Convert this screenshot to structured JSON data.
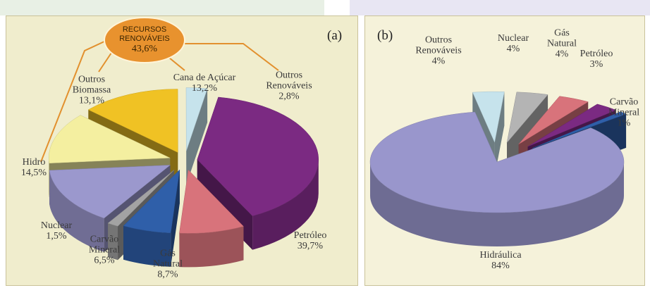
{
  "chart_data": [
    {
      "type": "pie",
      "title": "(a)",
      "annotation": {
        "text": "RECURSOS RENOVÁVEIS",
        "value": 43.6,
        "value_label": "43,6%"
      },
      "categories": [
        "Petróleo",
        "Gás Natural",
        "Carvão Mineral",
        "Nuclear",
        "Hidro",
        "Outros Biomassa",
        "Cana de Açúcar",
        "Outros Renováveis"
      ],
      "values": [
        39.7,
        8.7,
        6.5,
        1.5,
        14.5,
        13.1,
        13.2,
        2.8
      ],
      "value_labels": [
        "39,7%",
        "8,7%",
        "6,5%",
        "1,5%",
        "14,5%",
        "13,1%",
        "13,2%",
        "2,8%"
      ],
      "colors": [
        "#7b2a82",
        "#d8737b",
        "#2f5fa9",
        "#a3a3a3",
        "#9b98cd",
        "#f4efa0",
        "#f0c224",
        "#c6e3ec"
      ]
    },
    {
      "type": "pie",
      "title": "(b)",
      "categories": [
        "Hidráulica",
        "Outros Renováveis",
        "Nuclear",
        "Gás Natural",
        "Petróleo",
        "Carvão Mineral"
      ],
      "values": [
        84,
        4,
        4,
        4,
        3,
        1
      ],
      "value_labels": [
        "84%",
        "4%",
        "4%",
        "4%",
        "3%",
        "1%"
      ],
      "colors": [
        "#9996cc",
        "#c6e3ec",
        "#b4b4b4",
        "#d8737b",
        "#7b2a82",
        "#2f5fa9"
      ]
    }
  ]
}
